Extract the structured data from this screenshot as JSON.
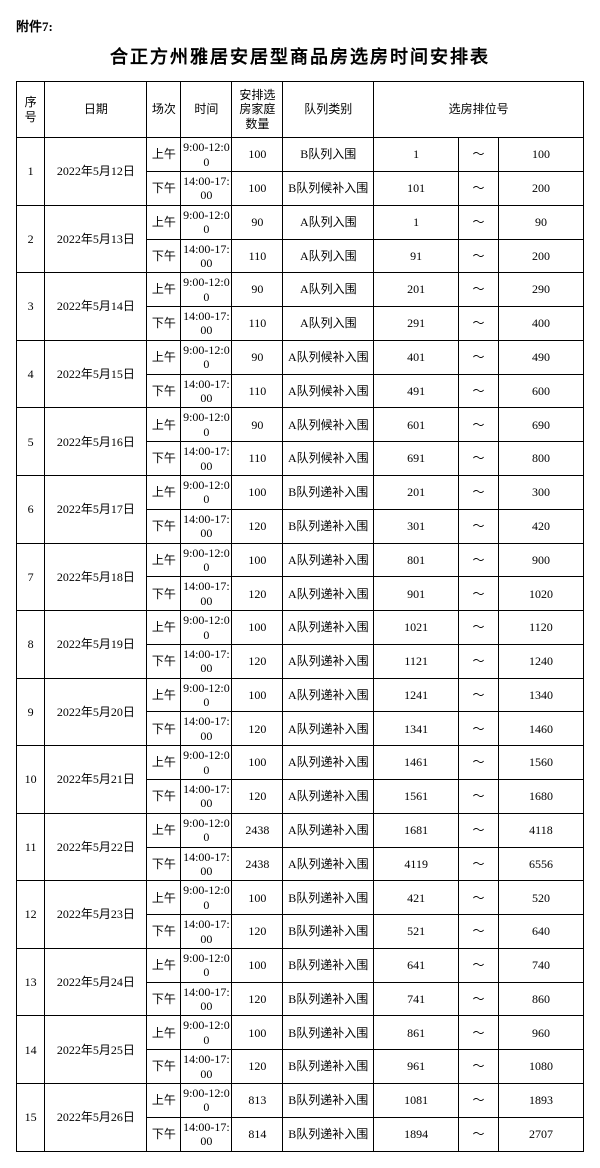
{
  "attachment_label": "附件7:",
  "title": "合正方州雅居安居型商品房选房时间安排表",
  "headers": {
    "index": "序号",
    "date": "日期",
    "session": "场次",
    "time": "时间",
    "qty": "安排选房家庭数量",
    "category": "队列类别",
    "range": "选房排位号"
  },
  "separator": "～",
  "rows": [
    {
      "index": "1",
      "date": "2022年5月12日",
      "am": {
        "session": "上午",
        "time": "9:00-12:00",
        "qty": "100",
        "category": "B队列入围",
        "start": "1",
        "end": "100"
      },
      "pm": {
        "session": "下午",
        "time": "14:00-17:00",
        "qty": "100",
        "category": "B队列候补入围",
        "start": "101",
        "end": "200"
      }
    },
    {
      "index": "2",
      "date": "2022年5月13日",
      "am": {
        "session": "上午",
        "time": "9:00-12:00",
        "qty": "90",
        "category": "A队列入围",
        "start": "1",
        "end": "90"
      },
      "pm": {
        "session": "下午",
        "time": "14:00-17:00",
        "qty": "110",
        "category": "A队列入围",
        "start": "91",
        "end": "200"
      }
    },
    {
      "index": "3",
      "date": "2022年5月14日",
      "am": {
        "session": "上午",
        "time": "9:00-12:00",
        "qty": "90",
        "category": "A队列入围",
        "start": "201",
        "end": "290"
      },
      "pm": {
        "session": "下午",
        "time": "14:00-17:00",
        "qty": "110",
        "category": "A队列入围",
        "start": "291",
        "end": "400"
      }
    },
    {
      "index": "4",
      "date": "2022年5月15日",
      "am": {
        "session": "上午",
        "time": "9:00-12:00",
        "qty": "90",
        "category": "A队列候补入围",
        "start": "401",
        "end": "490"
      },
      "pm": {
        "session": "下午",
        "time": "14:00-17:00",
        "qty": "110",
        "category": "A队列候补入围",
        "start": "491",
        "end": "600"
      }
    },
    {
      "index": "5",
      "date": "2022年5月16日",
      "am": {
        "session": "上午",
        "time": "9:00-12:00",
        "qty": "90",
        "category": "A队列候补入围",
        "start": "601",
        "end": "690"
      },
      "pm": {
        "session": "下午",
        "time": "14:00-17:00",
        "qty": "110",
        "category": "A队列候补入围",
        "start": "691",
        "end": "800"
      }
    },
    {
      "index": "6",
      "date": "2022年5月17日",
      "am": {
        "session": "上午",
        "time": "9:00-12:00",
        "qty": "100",
        "category": "B队列递补入围",
        "start": "201",
        "end": "300"
      },
      "pm": {
        "session": "下午",
        "time": "14:00-17:00",
        "qty": "120",
        "category": "B队列递补入围",
        "start": "301",
        "end": "420"
      }
    },
    {
      "index": "7",
      "date": "2022年5月18日",
      "am": {
        "session": "上午",
        "time": "9:00-12:00",
        "qty": "100",
        "category": "A队列递补入围",
        "start": "801",
        "end": "900"
      },
      "pm": {
        "session": "下午",
        "time": "14:00-17:00",
        "qty": "120",
        "category": "A队列递补入围",
        "start": "901",
        "end": "1020"
      }
    },
    {
      "index": "8",
      "date": "2022年5月19日",
      "am": {
        "session": "上午",
        "time": "9:00-12:00",
        "qty": "100",
        "category": "A队列递补入围",
        "start": "1021",
        "end": "1120"
      },
      "pm": {
        "session": "下午",
        "time": "14:00-17:00",
        "qty": "120",
        "category": "A队列递补入围",
        "start": "1121",
        "end": "1240"
      }
    },
    {
      "index": "9",
      "date": "2022年5月20日",
      "am": {
        "session": "上午",
        "time": "9:00-12:00",
        "qty": "100",
        "category": "A队列递补入围",
        "start": "1241",
        "end": "1340"
      },
      "pm": {
        "session": "下午",
        "time": "14:00-17:00",
        "qty": "120",
        "category": "A队列递补入围",
        "start": "1341",
        "end": "1460"
      }
    },
    {
      "index": "10",
      "date": "2022年5月21日",
      "am": {
        "session": "上午",
        "time": "9:00-12:00",
        "qty": "100",
        "category": "A队列递补入围",
        "start": "1461",
        "end": "1560"
      },
      "pm": {
        "session": "下午",
        "time": "14:00-17:00",
        "qty": "120",
        "category": "A队列递补入围",
        "start": "1561",
        "end": "1680"
      }
    },
    {
      "index": "11",
      "date": "2022年5月22日",
      "am": {
        "session": "上午",
        "time": "9:00-12:00",
        "qty": "2438",
        "category": "A队列递补入围",
        "start": "1681",
        "end": "4118"
      },
      "pm": {
        "session": "下午",
        "time": "14:00-17:00",
        "qty": "2438",
        "category": "A队列递补入围",
        "start": "4119",
        "end": "6556"
      }
    },
    {
      "index": "12",
      "date": "2022年5月23日",
      "am": {
        "session": "上午",
        "time": "9:00-12:00",
        "qty": "100",
        "category": "B队列递补入围",
        "start": "421",
        "end": "520"
      },
      "pm": {
        "session": "下午",
        "time": "14:00-17:00",
        "qty": "120",
        "category": "B队列递补入围",
        "start": "521",
        "end": "640"
      }
    },
    {
      "index": "13",
      "date": "2022年5月24日",
      "am": {
        "session": "上午",
        "time": "9:00-12:00",
        "qty": "100",
        "category": "B队列递补入围",
        "start": "641",
        "end": "740"
      },
      "pm": {
        "session": "下午",
        "time": "14:00-17:00",
        "qty": "120",
        "category": "B队列递补入围",
        "start": "741",
        "end": "860"
      }
    },
    {
      "index": "14",
      "date": "2022年5月25日",
      "am": {
        "session": "上午",
        "time": "9:00-12:00",
        "qty": "100",
        "category": "B队列递补入围",
        "start": "861",
        "end": "960"
      },
      "pm": {
        "session": "下午",
        "time": "14:00-17:00",
        "qty": "120",
        "category": "B队列递补入围",
        "start": "961",
        "end": "1080"
      }
    },
    {
      "index": "15",
      "date": "2022年5月26日",
      "am": {
        "session": "上午",
        "time": "9:00-12:00",
        "qty": "813",
        "category": "B队列递补入围",
        "start": "1081",
        "end": "1893"
      },
      "pm": {
        "session": "下午",
        "time": "14:00-17:00",
        "qty": "814",
        "category": "B队列递补入围",
        "start": "1894",
        "end": "2707"
      }
    }
  ]
}
